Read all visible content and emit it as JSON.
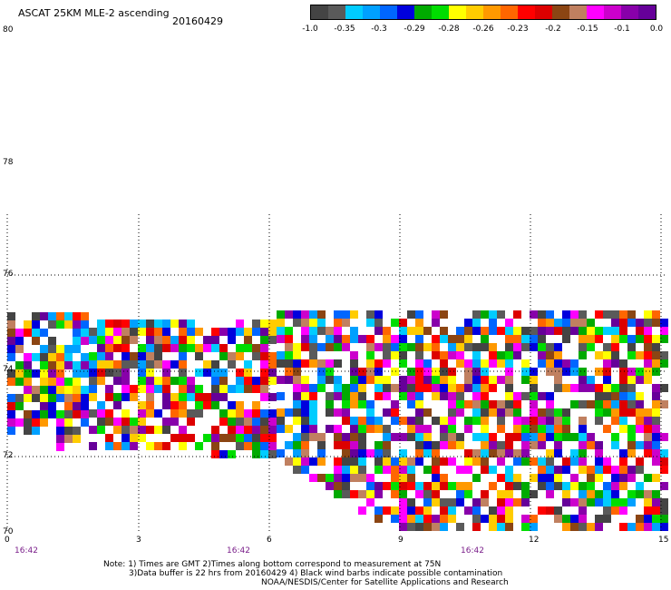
{
  "header": {
    "title": "ASCAT 25KM MLE-2 ascending",
    "date": "20160429"
  },
  "colorbar": {
    "colors": [
      "#444444",
      "#5a5a5a",
      "#00ccff",
      "#00a0ff",
      "#0066ff",
      "#0000dd",
      "#00aa00",
      "#00dd00",
      "#ffff00",
      "#ffcc00",
      "#ff9900",
      "#ff6600",
      "#ff0000",
      "#dd0000",
      "#8b4513",
      "#c08060",
      "#ff00ff",
      "#cc00cc",
      "#8800aa",
      "#660099"
    ],
    "labels": [
      "-1.0",
      "-0.35",
      "-0.3",
      "-0.29",
      "-0.28",
      "-0.26",
      "-0.23",
      "-0.2",
      "-0.15",
      "-0.1",
      "0.0"
    ]
  },
  "axes": {
    "y_ticks": [
      "80",
      "78",
      "76",
      "74",
      "72",
      "70"
    ],
    "x_ticks": [
      "0",
      "3",
      "6",
      "9",
      "12",
      "15"
    ],
    "times": [
      "16:42",
      "16:42",
      "16:42"
    ]
  },
  "notes": [
    "Note: 1) Times are GMT 2)Times along bottom correspond to measurement at 75N",
    "3)Data buffer is 22 hrs from 20160429 4) Black wind barbs indicate possible contamination",
    "NOAA/NESDIS/Center for Satellite Applications and Research"
  ]
}
